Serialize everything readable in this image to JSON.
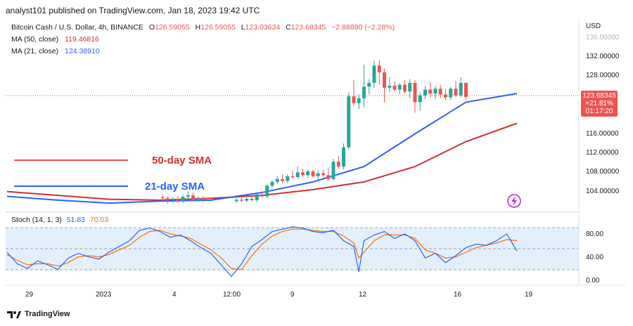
{
  "header": "analyst101 published on TradingView.com, Jan 18, 2023 19:42 UTC",
  "symbol": {
    "name": "Bitcoin Cash / U.S. Dollar, 4h, BINANCE",
    "o_key": "O",
    "o": "126.59055",
    "h_key": "H",
    "h": "126.59055",
    "l_key": "L",
    "l": "123.03634",
    "c_key": "C",
    "c": "123.68345",
    "change": "−2.88880 (−2.28%)"
  },
  "ma50_label": "MA (50, close)",
  "ma50_value": "119.46816",
  "ma21_label": "MA (21, close)",
  "ma21_value": "124.38910",
  "stoch_label": "Stoch (14, 1, 3)",
  "stoch_k": "51.83",
  "stoch_d": "70.03",
  "sma50_text": "50-day SMA",
  "sma21_text": "21-day SMA",
  "currency": "USD",
  "price_badge": {
    "price": "123.68345",
    "pct": "+21.81%",
    "timer": "01:17:20"
  },
  "price_ticks": [
    "136.00000",
    "132.00000",
    "128.00000",
    "116.00000",
    "112.00000",
    "108.00000",
    "104.00000"
  ],
  "stoch_ticks": [
    "80.00",
    "40.00",
    "0.00"
  ],
  "x_ticks": [
    "29",
    "2023",
    "4",
    "12:00",
    "9",
    "12",
    "16",
    "19"
  ],
  "footer": "TradingView",
  "colors": {
    "up": "#26a69a",
    "down": "#ef5350",
    "ma21": "#2962ff",
    "ma50": "#d32f2f",
    "stoch_k": "#2962ff",
    "stoch_d": "#ff6d00",
    "band": "#e3f0fb"
  },
  "chart_data": {
    "type": "candlestick",
    "series": [
      {
        "name": "MA (50, close)",
        "x": [
          0,
          10,
          20,
          30,
          40,
          50,
          60,
          70,
          80,
          90,
          100
        ],
        "y": [
          104,
          103.2,
          102.4,
          102.2,
          102.6,
          103.2,
          104.4,
          106,
          109.2,
          114.4,
          118.2
        ]
      },
      {
        "name": "MA (21, close)",
        "x": [
          0,
          10,
          20,
          30,
          40,
          50,
          60,
          70,
          80,
          90,
          100
        ],
        "y": [
          103,
          102.2,
          101.6,
          102,
          102.2,
          103.8,
          106,
          109.2,
          116,
          122.6,
          124.4
        ]
      }
    ],
    "candles": [
      {
        "x": 30.5,
        "o": 102.8,
        "h": 103.4,
        "l": 101.9,
        "c": 102.6
      },
      {
        "x": 31.5,
        "o": 102.6,
        "h": 103.0,
        "l": 101.5,
        "c": 102.2
      },
      {
        "x": 32.5,
        "o": 102.2,
        "h": 102.8,
        "l": 101.6,
        "c": 102.5
      },
      {
        "x": 33.5,
        "o": 102.5,
        "h": 103.0,
        "l": 101.6,
        "c": 102.0
      },
      {
        "x": 34.5,
        "o": 102.0,
        "h": 103.4,
        "l": 101.6,
        "c": 102.9
      },
      {
        "x": 35.5,
        "o": 102.9,
        "h": 104.0,
        "l": 102.0,
        "c": 103.2
      },
      {
        "x": 36.5,
        "o": 103.2,
        "h": 103.8,
        "l": 102.2,
        "c": 102.4
      },
      {
        "x": 37.5,
        "o": 102.4,
        "h": 103.0,
        "l": 101.8,
        "c": 102.7
      },
      {
        "x": 38.5,
        "o": 102.7,
        "h": 103.0,
        "l": 101.8,
        "c": 102.3
      },
      {
        "x": 45,
        "o": 102.0,
        "h": 102.6,
        "l": 101.6,
        "c": 102.3
      },
      {
        "x": 46,
        "o": 102.3,
        "h": 102.8,
        "l": 101.8,
        "c": 102.1
      },
      {
        "x": 47,
        "o": 102.1,
        "h": 102.8,
        "l": 101.8,
        "c": 102.5
      },
      {
        "x": 48,
        "o": 102.5,
        "h": 103.0,
        "l": 102.0,
        "c": 102.2
      },
      {
        "x": 49,
        "o": 102.2,
        "h": 103.6,
        "l": 101.8,
        "c": 103.4
      },
      {
        "x": 50,
        "o": 103.4,
        "h": 104.0,
        "l": 102.8,
        "c": 103.0
      },
      {
        "x": 51,
        "o": 103.0,
        "h": 105.6,
        "l": 102.6,
        "c": 105.2
      },
      {
        "x": 52,
        "o": 105.2,
        "h": 106.4,
        "l": 104.8,
        "c": 106.0
      },
      {
        "x": 53,
        "o": 106.0,
        "h": 107.2,
        "l": 105.6,
        "c": 106.6
      },
      {
        "x": 54,
        "o": 106.6,
        "h": 107.6,
        "l": 105.8,
        "c": 106.2
      },
      {
        "x": 55,
        "o": 106.2,
        "h": 107.6,
        "l": 105.8,
        "c": 107.2
      },
      {
        "x": 56,
        "o": 107.2,
        "h": 108.4,
        "l": 106.6,
        "c": 107.0
      },
      {
        "x": 57,
        "o": 107.0,
        "h": 109.2,
        "l": 106.6,
        "c": 108.0
      },
      {
        "x": 58,
        "o": 108.0,
        "h": 108.8,
        "l": 107.0,
        "c": 107.4
      },
      {
        "x": 59,
        "o": 107.4,
        "h": 108.6,
        "l": 106.8,
        "c": 108.2
      },
      {
        "x": 60,
        "o": 108.2,
        "h": 108.6,
        "l": 106.8,
        "c": 107.2
      },
      {
        "x": 61,
        "o": 107.2,
        "h": 108.4,
        "l": 106.4,
        "c": 107.8
      },
      {
        "x": 62,
        "o": 107.8,
        "h": 108.6,
        "l": 107.0,
        "c": 107.4
      },
      {
        "x": 63,
        "o": 107.4,
        "h": 109.0,
        "l": 106.2,
        "c": 106.6
      },
      {
        "x": 64,
        "o": 106.6,
        "h": 110.8,
        "l": 106.2,
        "c": 110.2
      },
      {
        "x": 65,
        "o": 110.2,
        "h": 111.4,
        "l": 108.8,
        "c": 109.2
      },
      {
        "x": 66,
        "o": 109.2,
        "h": 114.0,
        "l": 108.6,
        "c": 113.2
      },
      {
        "x": 67,
        "o": 113.2,
        "h": 124.6,
        "l": 112.8,
        "c": 123.8
      },
      {
        "x": 68,
        "o": 123.8,
        "h": 127.2,
        "l": 121.8,
        "c": 122.4
      },
      {
        "x": 69,
        "o": 122.4,
        "h": 124.2,
        "l": 121.2,
        "c": 123.4
      },
      {
        "x": 70,
        "o": 123.4,
        "h": 130.4,
        "l": 121.6,
        "c": 125.8
      },
      {
        "x": 71,
        "o": 125.8,
        "h": 127.4,
        "l": 124.2,
        "c": 126.6
      },
      {
        "x": 72,
        "o": 126.6,
        "h": 131.2,
        "l": 125.6,
        "c": 130.2
      },
      {
        "x": 73,
        "o": 130.2,
        "h": 131.4,
        "l": 126.2,
        "c": 128.8
      },
      {
        "x": 74,
        "o": 128.8,
        "h": 129.6,
        "l": 122.6,
        "c": 125.6
      },
      {
        "x": 75,
        "o": 125.6,
        "h": 127.8,
        "l": 124.6,
        "c": 126.0
      },
      {
        "x": 76,
        "o": 126.0,
        "h": 127.0,
        "l": 124.8,
        "c": 125.2
      },
      {
        "x": 77,
        "o": 125.2,
        "h": 126.6,
        "l": 124.2,
        "c": 126.2
      },
      {
        "x": 78,
        "o": 126.2,
        "h": 127.2,
        "l": 124.4,
        "c": 124.8
      },
      {
        "x": 79,
        "o": 124.8,
        "h": 127.4,
        "l": 123.4,
        "c": 126.6
      },
      {
        "x": 80,
        "o": 126.6,
        "h": 127.2,
        "l": 120.4,
        "c": 122.6
      },
      {
        "x": 81,
        "o": 122.6,
        "h": 124.6,
        "l": 120.8,
        "c": 124.0
      },
      {
        "x": 82,
        "o": 124.0,
        "h": 126.0,
        "l": 123.2,
        "c": 125.2
      },
      {
        "x": 83,
        "o": 125.2,
        "h": 126.8,
        "l": 123.6,
        "c": 124.4
      },
      {
        "x": 84,
        "o": 124.4,
        "h": 126.0,
        "l": 123.2,
        "c": 125.4
      },
      {
        "x": 85,
        "o": 125.4,
        "h": 126.2,
        "l": 123.4,
        "c": 124.2
      },
      {
        "x": 86,
        "o": 124.2,
        "h": 125.2,
        "l": 123.0,
        "c": 123.6
      },
      {
        "x": 87,
        "o": 123.6,
        "h": 125.8,
        "l": 123.0,
        "c": 125.4
      },
      {
        "x": 88,
        "o": 125.4,
        "h": 127.0,
        "l": 123.6,
        "c": 124.0
      },
      {
        "x": 89,
        "o": 124.0,
        "h": 127.8,
        "l": 123.6,
        "c": 126.6
      },
      {
        "x": 90,
        "o": 126.6,
        "h": 126.6,
        "l": 123.0,
        "c": 123.7
      }
    ],
    "stoch": {
      "k": [
        [
          0,
          50
        ],
        [
          2,
          30
        ],
        [
          4,
          22
        ],
        [
          6,
          35
        ],
        [
          8,
          28
        ],
        [
          10,
          20
        ],
        [
          12,
          40
        ],
        [
          14,
          48
        ],
        [
          16,
          42
        ],
        [
          18,
          38
        ],
        [
          20,
          50
        ],
        [
          22,
          60
        ],
        [
          24,
          70
        ],
        [
          26,
          88
        ],
        [
          28,
          92
        ],
        [
          30,
          86
        ],
        [
          32,
          76
        ],
        [
          34,
          80
        ],
        [
          36,
          70
        ],
        [
          38,
          58
        ],
        [
          40,
          48
        ],
        [
          42,
          28
        ],
        [
          44,
          8
        ],
        [
          46,
          30
        ],
        [
          48,
          60
        ],
        [
          50,
          72
        ],
        [
          52,
          86
        ],
        [
          54,
          90
        ],
        [
          56,
          94
        ],
        [
          58,
          92
        ],
        [
          60,
          86
        ],
        [
          62,
          84
        ],
        [
          64,
          88
        ],
        [
          66,
          70
        ],
        [
          68,
          60
        ],
        [
          69,
          16
        ],
        [
          70,
          70
        ],
        [
          72,
          80
        ],
        [
          74,
          86
        ],
        [
          76,
          74
        ],
        [
          78,
          82
        ],
        [
          80,
          70
        ],
        [
          82,
          40
        ],
        [
          84,
          48
        ],
        [
          86,
          32
        ],
        [
          88,
          44
        ],
        [
          90,
          58
        ],
        [
          92,
          64
        ],
        [
          94,
          62
        ],
        [
          96,
          70
        ],
        [
          98,
          82
        ],
        [
          100,
          52
        ]
      ],
      "d": [
        [
          0,
          46
        ],
        [
          2,
          36
        ],
        [
          4,
          28
        ],
        [
          6,
          30
        ],
        [
          8,
          30
        ],
        [
          10,
          26
        ],
        [
          12,
          32
        ],
        [
          14,
          42
        ],
        [
          16,
          44
        ],
        [
          18,
          42
        ],
        [
          20,
          46
        ],
        [
          22,
          54
        ],
        [
          24,
          62
        ],
        [
          26,
          76
        ],
        [
          28,
          86
        ],
        [
          30,
          88
        ],
        [
          32,
          82
        ],
        [
          34,
          78
        ],
        [
          36,
          74
        ],
        [
          38,
          64
        ],
        [
          40,
          54
        ],
        [
          42,
          40
        ],
        [
          44,
          22
        ],
        [
          46,
          20
        ],
        [
          48,
          44
        ],
        [
          50,
          64
        ],
        [
          52,
          78
        ],
        [
          54,
          86
        ],
        [
          56,
          90
        ],
        [
          58,
          90
        ],
        [
          60,
          88
        ],
        [
          62,
          86
        ],
        [
          64,
          86
        ],
        [
          66,
          78
        ],
        [
          68,
          66
        ],
        [
          69,
          40
        ],
        [
          70,
          50
        ],
        [
          72,
          70
        ],
        [
          74,
          80
        ],
        [
          76,
          80
        ],
        [
          78,
          80
        ],
        [
          80,
          74
        ],
        [
          82,
          54
        ],
        [
          84,
          48
        ],
        [
          86,
          40
        ],
        [
          88,
          42
        ],
        [
          90,
          50
        ],
        [
          92,
          58
        ],
        [
          94,
          62
        ],
        [
          96,
          66
        ],
        [
          98,
          72
        ],
        [
          100,
          70
        ]
      ],
      "ylim": [
        0,
        100
      ]
    },
    "ylim": [
      100,
      138
    ],
    "xlim": [
      0,
      100
    ],
    "legend": [
      "50-day SMA",
      "21-day SMA"
    ]
  }
}
